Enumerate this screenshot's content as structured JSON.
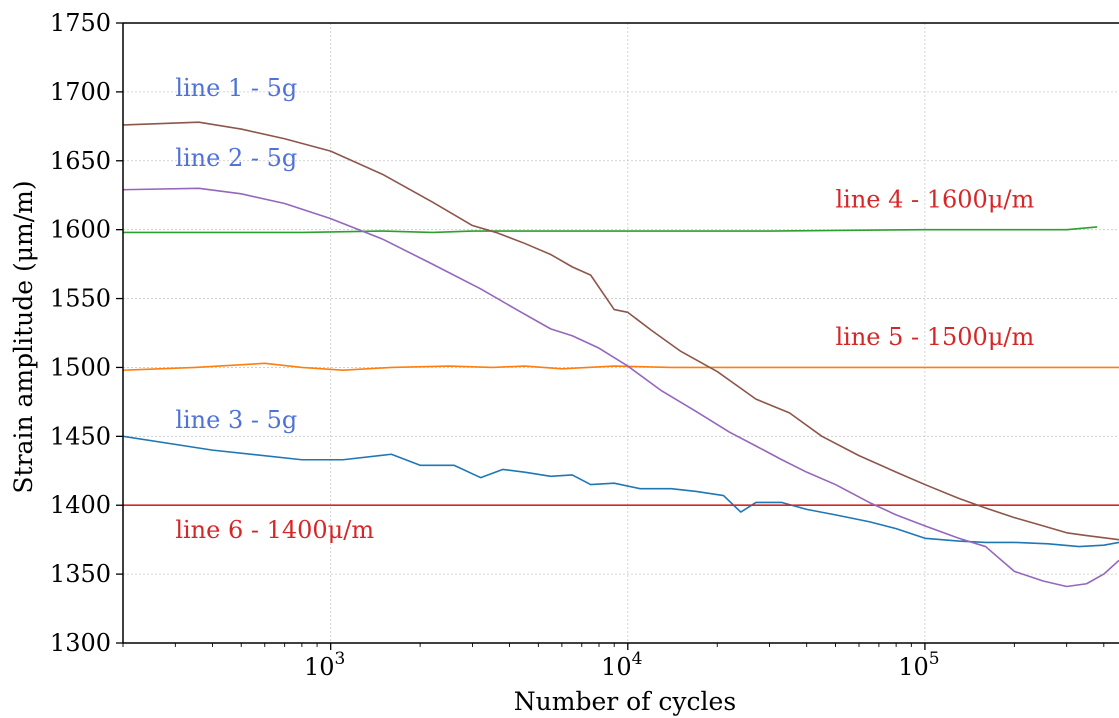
{
  "chart_data": {
    "type": "line",
    "xscale": "log",
    "xlim": [
      200,
      450000
    ],
    "ylim": [
      1300,
      1750
    ],
    "xlabel": "Number of cycles",
    "ylabel": "Strain amplitude (μm/m)",
    "grid": true,
    "yticks": [
      1300,
      1350,
      1400,
      1450,
      1500,
      1550,
      1600,
      1650,
      1700,
      1750
    ],
    "xticks": [
      {
        "value": 1000,
        "base": "10",
        "exp": "3"
      },
      {
        "value": 10000,
        "base": "10",
        "exp": "4"
      },
      {
        "value": 100000,
        "base": "10",
        "exp": "5"
      }
    ],
    "series": [
      {
        "key": "s3",
        "color": "#1f77b4",
        "points": [
          [
            200,
            1450
          ],
          [
            400,
            1440
          ],
          [
            800,
            1433
          ],
          [
            1100,
            1433
          ],
          [
            1600,
            1437
          ],
          [
            2000,
            1429
          ],
          [
            2600,
            1429
          ],
          [
            3200,
            1420
          ],
          [
            3800,
            1426
          ],
          [
            4500,
            1424
          ],
          [
            5500,
            1421
          ],
          [
            6500,
            1422
          ],
          [
            7500,
            1415
          ],
          [
            9000,
            1416
          ],
          [
            11000,
            1412
          ],
          [
            14000,
            1412
          ],
          [
            17000,
            1410
          ],
          [
            21000,
            1407
          ],
          [
            24000,
            1395
          ],
          [
            27000,
            1402
          ],
          [
            33000,
            1402
          ],
          [
            40000,
            1397
          ],
          [
            50000,
            1393
          ],
          [
            65000,
            1388
          ],
          [
            80000,
            1383
          ],
          [
            100000,
            1376
          ],
          [
            130000,
            1374
          ],
          [
            160000,
            1373
          ],
          [
            200000,
            1373
          ],
          [
            260000,
            1372
          ],
          [
            330000,
            1370
          ],
          [
            400000,
            1371
          ],
          [
            450000,
            1373
          ]
        ]
      },
      {
        "key": "s5",
        "color": "#ff7f0e",
        "points": [
          [
            200,
            1498
          ],
          [
            350,
            1500
          ],
          [
            600,
            1503
          ],
          [
            800,
            1500
          ],
          [
            1100,
            1498
          ],
          [
            1600,
            1500
          ],
          [
            2500,
            1501
          ],
          [
            3500,
            1500
          ],
          [
            4500,
            1501
          ],
          [
            6000,
            1499
          ],
          [
            9000,
            1501
          ],
          [
            14000,
            1500
          ],
          [
            25000,
            1500
          ],
          [
            50000,
            1500
          ],
          [
            100000,
            1500
          ],
          [
            200000,
            1500
          ],
          [
            350000,
            1500
          ],
          [
            450000,
            1500
          ]
        ]
      },
      {
        "key": "s4",
        "color": "#2ca02c",
        "points": [
          [
            200,
            1598
          ],
          [
            500,
            1598
          ],
          [
            800,
            1598
          ],
          [
            1500,
            1599
          ],
          [
            2200,
            1598
          ],
          [
            3000,
            1599
          ],
          [
            5000,
            1599
          ],
          [
            10000,
            1599
          ],
          [
            30000,
            1599
          ],
          [
            100000,
            1600
          ],
          [
            300000,
            1600
          ],
          [
            380000,
            1602
          ]
        ]
      },
      {
        "key": "s6",
        "color": "#d62728",
        "points": [
          [
            200,
            1400
          ],
          [
            600,
            1400
          ],
          [
            1200,
            1400
          ],
          [
            3000,
            1400
          ],
          [
            8000,
            1400
          ],
          [
            20000,
            1400
          ],
          [
            60000,
            1400
          ],
          [
            150000,
            1400
          ],
          [
            300000,
            1400
          ],
          [
            450000,
            1400
          ]
        ]
      },
      {
        "key": "s2",
        "color": "#9467bd",
        "points": [
          [
            200,
            1629
          ],
          [
            360,
            1630
          ],
          [
            500,
            1626
          ],
          [
            700,
            1619
          ],
          [
            1000,
            1608
          ],
          [
            1500,
            1593
          ],
          [
            2200,
            1575
          ],
          [
            3200,
            1557
          ],
          [
            4300,
            1541
          ],
          [
            5500,
            1528
          ],
          [
            6500,
            1523
          ],
          [
            8000,
            1514
          ],
          [
            10000,
            1501
          ],
          [
            13000,
            1483
          ],
          [
            17000,
            1468
          ],
          [
            22000,
            1453
          ],
          [
            27000,
            1443
          ],
          [
            33000,
            1433
          ],
          [
            40000,
            1424
          ],
          [
            50000,
            1415
          ],
          [
            65000,
            1402
          ],
          [
            80000,
            1393
          ],
          [
            100000,
            1385
          ],
          [
            130000,
            1376
          ],
          [
            160000,
            1370
          ],
          [
            200000,
            1352
          ],
          [
            250000,
            1345
          ],
          [
            300000,
            1341
          ],
          [
            350000,
            1343
          ],
          [
            400000,
            1350
          ],
          [
            450000,
            1360
          ]
        ]
      },
      {
        "key": "s1",
        "color": "#8c564b",
        "points": [
          [
            200,
            1676
          ],
          [
            360,
            1678
          ],
          [
            500,
            1673
          ],
          [
            700,
            1666
          ],
          [
            1000,
            1657
          ],
          [
            1500,
            1640
          ],
          [
            2200,
            1620
          ],
          [
            3000,
            1603
          ],
          [
            3600,
            1598
          ],
          [
            4500,
            1590
          ],
          [
            5500,
            1582
          ],
          [
            6500,
            1573
          ],
          [
            7500,
            1567
          ],
          [
            9000,
            1542
          ],
          [
            10000,
            1540
          ],
          [
            12000,
            1527
          ],
          [
            15000,
            1512
          ],
          [
            20000,
            1497
          ],
          [
            27000,
            1477
          ],
          [
            35000,
            1467
          ],
          [
            45000,
            1450
          ],
          [
            60000,
            1436
          ],
          [
            80000,
            1424
          ],
          [
            100000,
            1415
          ],
          [
            130000,
            1405
          ],
          [
            160000,
            1398
          ],
          [
            200000,
            1391
          ],
          [
            250000,
            1385
          ],
          [
            300000,
            1380
          ],
          [
            350000,
            1378
          ],
          [
            450000,
            1375
          ]
        ]
      }
    ],
    "annotations": [
      {
        "text": "line 1 - 5g",
        "color": "#4f72d9",
        "at": [
          300,
          1703
        ]
      },
      {
        "text": "line 2 - 5g",
        "color": "#4f72d9",
        "at": [
          300,
          1652
        ]
      },
      {
        "text": "line 3 - 5g",
        "color": "#4f72d9",
        "at": [
          300,
          1462
        ]
      },
      {
        "text": "line 4 - 1600μ/m",
        "color": "#d62728",
        "at": [
          50000,
          1622
        ]
      },
      {
        "text": "line 5 - 1500μ/m",
        "color": "#d62728",
        "at": [
          50000,
          1522
        ]
      },
      {
        "text": "line 6 - 1400μ/m",
        "color": "#d62728",
        "at": [
          300,
          1382
        ]
      }
    ]
  }
}
